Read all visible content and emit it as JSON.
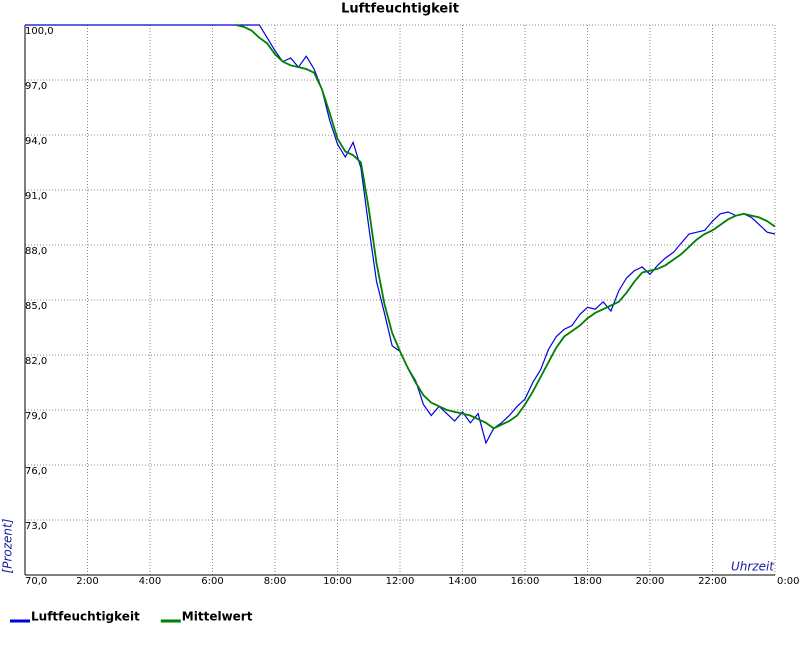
{
  "chart_data": {
    "type": "line",
    "title": "Luftfeuchtigkeit",
    "y_label": "[Prozent]",
    "x_label": "Uhrzeit",
    "x": [
      0,
      0.25,
      0.5,
      0.75,
      1,
      1.25,
      1.5,
      1.75,
      2,
      2.25,
      2.5,
      2.75,
      3,
      3.25,
      3.5,
      3.75,
      4,
      4.25,
      4.5,
      4.75,
      5,
      5.25,
      5.5,
      5.75,
      6,
      6.25,
      6.5,
      6.75,
      7,
      7.25,
      7.5,
      7.75,
      8,
      8.25,
      8.5,
      8.75,
      9,
      9.25,
      9.5,
      9.75,
      10,
      10.25,
      10.5,
      10.75,
      11,
      11.25,
      11.5,
      11.75,
      12,
      12.25,
      12.5,
      12.75,
      13,
      13.25,
      13.5,
      13.75,
      14,
      14.25,
      14.5,
      14.75,
      15,
      15.25,
      15.5,
      15.75,
      16,
      16.25,
      16.5,
      16.75,
      17,
      17.25,
      17.5,
      17.75,
      18,
      18.25,
      18.5,
      18.75,
      19,
      19.25,
      19.5,
      19.75,
      20,
      20.25,
      20.5,
      20.75,
      21,
      21.25,
      21.5,
      21.75,
      22,
      22.25,
      22.5,
      22.75,
      23,
      23.25,
      23.5,
      23.75,
      24
    ],
    "series": [
      {
        "name": "Luftfeuchtigkeit",
        "color": "#0000e0",
        "values": [
          100,
          100,
          100,
          100,
          100,
          100,
          100,
          100,
          100,
          100,
          100,
          100,
          100,
          100,
          100,
          100,
          100,
          100,
          100,
          100,
          100,
          100,
          100,
          100,
          100,
          100,
          100,
          100,
          100,
          100,
          100,
          99.3,
          98.6,
          98.0,
          98.2,
          97.7,
          98.3,
          97.6,
          96.5,
          94.8,
          93.5,
          92.8,
          93.6,
          92.2,
          89.0,
          86.0,
          84.3,
          82.5,
          82.2,
          81.3,
          80.6,
          79.3,
          78.7,
          79.2,
          78.8,
          78.4,
          78.9,
          78.3,
          78.8,
          77.2,
          78.0,
          78.3,
          78.7,
          79.2,
          79.6,
          80.5,
          81.2,
          82.3,
          83.0,
          83.4,
          83.6,
          84.2,
          84.6,
          84.5,
          84.9,
          84.4,
          85.5,
          86.2,
          86.6,
          86.8,
          86.4,
          86.9,
          87.3,
          87.6,
          88.1,
          88.6,
          88.7,
          88.8,
          89.3,
          89.7,
          89.8,
          89.6,
          89.7,
          89.5,
          89.1,
          88.7,
          88.6
        ]
      },
      {
        "name": "Mittelwert",
        "color": "#008000",
        "values": [
          null,
          null,
          null,
          null,
          null,
          null,
          null,
          null,
          null,
          null,
          null,
          null,
          null,
          null,
          null,
          null,
          null,
          null,
          null,
          null,
          null,
          null,
          null,
          null,
          null,
          null,
          null,
          100,
          99.9,
          99.7,
          99.3,
          99.0,
          98.4,
          98.0,
          97.8,
          97.7,
          97.6,
          97.4,
          96.5,
          95.2,
          93.8,
          93.1,
          92.9,
          92.5,
          90.0,
          87.0,
          84.8,
          83.2,
          82.2,
          81.3,
          80.5,
          79.8,
          79.4,
          79.2,
          79.0,
          78.9,
          78.8,
          78.7,
          78.5,
          78.3,
          78.0,
          78.2,
          78.4,
          78.7,
          79.3,
          80.0,
          80.8,
          81.6,
          82.4,
          83.0,
          83.3,
          83.6,
          84.0,
          84.3,
          84.5,
          84.7,
          84.9,
          85.4,
          86.0,
          86.5,
          86.6,
          86.7,
          86.9,
          87.2,
          87.5,
          87.9,
          88.3,
          88.6,
          88.8,
          89.1,
          89.4,
          89.6,
          89.7,
          89.6,
          89.5,
          89.3,
          89.0
        ]
      }
    ],
    "xlim": [
      0,
      24
    ],
    "xticks": [
      {
        "value": 2,
        "label": "2:00"
      },
      {
        "value": 4,
        "label": "4:00"
      },
      {
        "value": 6,
        "label": "6:00"
      },
      {
        "value": 8,
        "label": "8:00"
      },
      {
        "value": 10,
        "label": "10:00"
      },
      {
        "value": 12,
        "label": "12:00"
      },
      {
        "value": 14,
        "label": "14:00"
      },
      {
        "value": 16,
        "label": "16:00"
      },
      {
        "value": 18,
        "label": "18:00"
      },
      {
        "value": 20,
        "label": "20:00"
      },
      {
        "value": 22,
        "label": "22:00"
      },
      {
        "value": 24,
        "label": "0:00"
      }
    ],
    "ylim": [
      70,
      100
    ],
    "yticks": [
      {
        "value": 100,
        "label": "100,0"
      },
      {
        "value": 97,
        "label": "97,0"
      },
      {
        "value": 94,
        "label": "94,0"
      },
      {
        "value": 91,
        "label": "91,0"
      },
      {
        "value": 88,
        "label": "88,0"
      },
      {
        "value": 85,
        "label": "85,0"
      },
      {
        "value": 82,
        "label": "82,0"
      },
      {
        "value": 79,
        "label": "79,0"
      },
      {
        "value": 76,
        "label": "76,0"
      },
      {
        "value": 73,
        "label": "73,0"
      },
      {
        "value": 70,
        "label": "70,0"
      }
    ],
    "grid": true,
    "legend": "bottom-left"
  }
}
